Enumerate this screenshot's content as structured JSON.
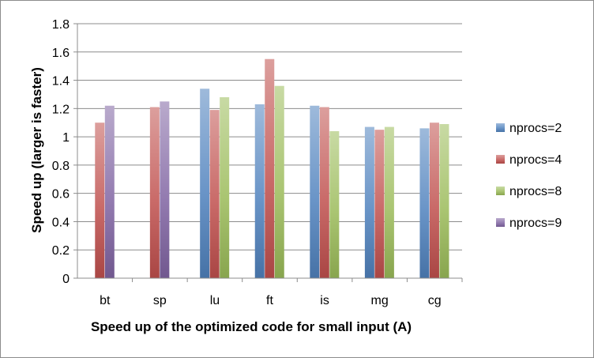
{
  "chart_data": {
    "type": "bar",
    "title": "",
    "xlabel": "Speed up of the optimized code for small input (A)",
    "ylabel": "Speed up (larger is faster)",
    "categories": [
      "bt",
      "sp",
      "lu",
      "ft",
      "is",
      "mg",
      "cg"
    ],
    "ylim": [
      0,
      1.8
    ],
    "yticks": [
      0,
      0.2,
      0.4,
      0.6,
      0.8,
      1,
      1.2,
      1.4,
      1.6,
      1.8
    ],
    "ytick_labels": [
      "0",
      "0.2",
      "0.4",
      "0.6",
      "0.8",
      "1",
      "1.2",
      "1.4",
      "1.6",
      "1.8"
    ],
    "grid": "horizontal",
    "legend_position": "right",
    "series": [
      {
        "name": "nprocs=2",
        "color": "#4F81BD",
        "values": [
          null,
          null,
          1.34,
          1.23,
          1.22,
          1.07,
          1.06
        ]
      },
      {
        "name": "nprocs=4",
        "color": "#C0504D",
        "values": [
          1.1,
          1.21,
          1.19,
          1.55,
          1.21,
          1.05,
          1.1
        ]
      },
      {
        "name": "nprocs=8",
        "color": "#9BBB59",
        "values": [
          null,
          null,
          1.28,
          1.36,
          1.04,
          1.07,
          1.09
        ]
      },
      {
        "name": "nprocs=9",
        "color": "#8064A2",
        "values": [
          1.22,
          1.25,
          null,
          null,
          null,
          null,
          null
        ]
      }
    ]
  }
}
